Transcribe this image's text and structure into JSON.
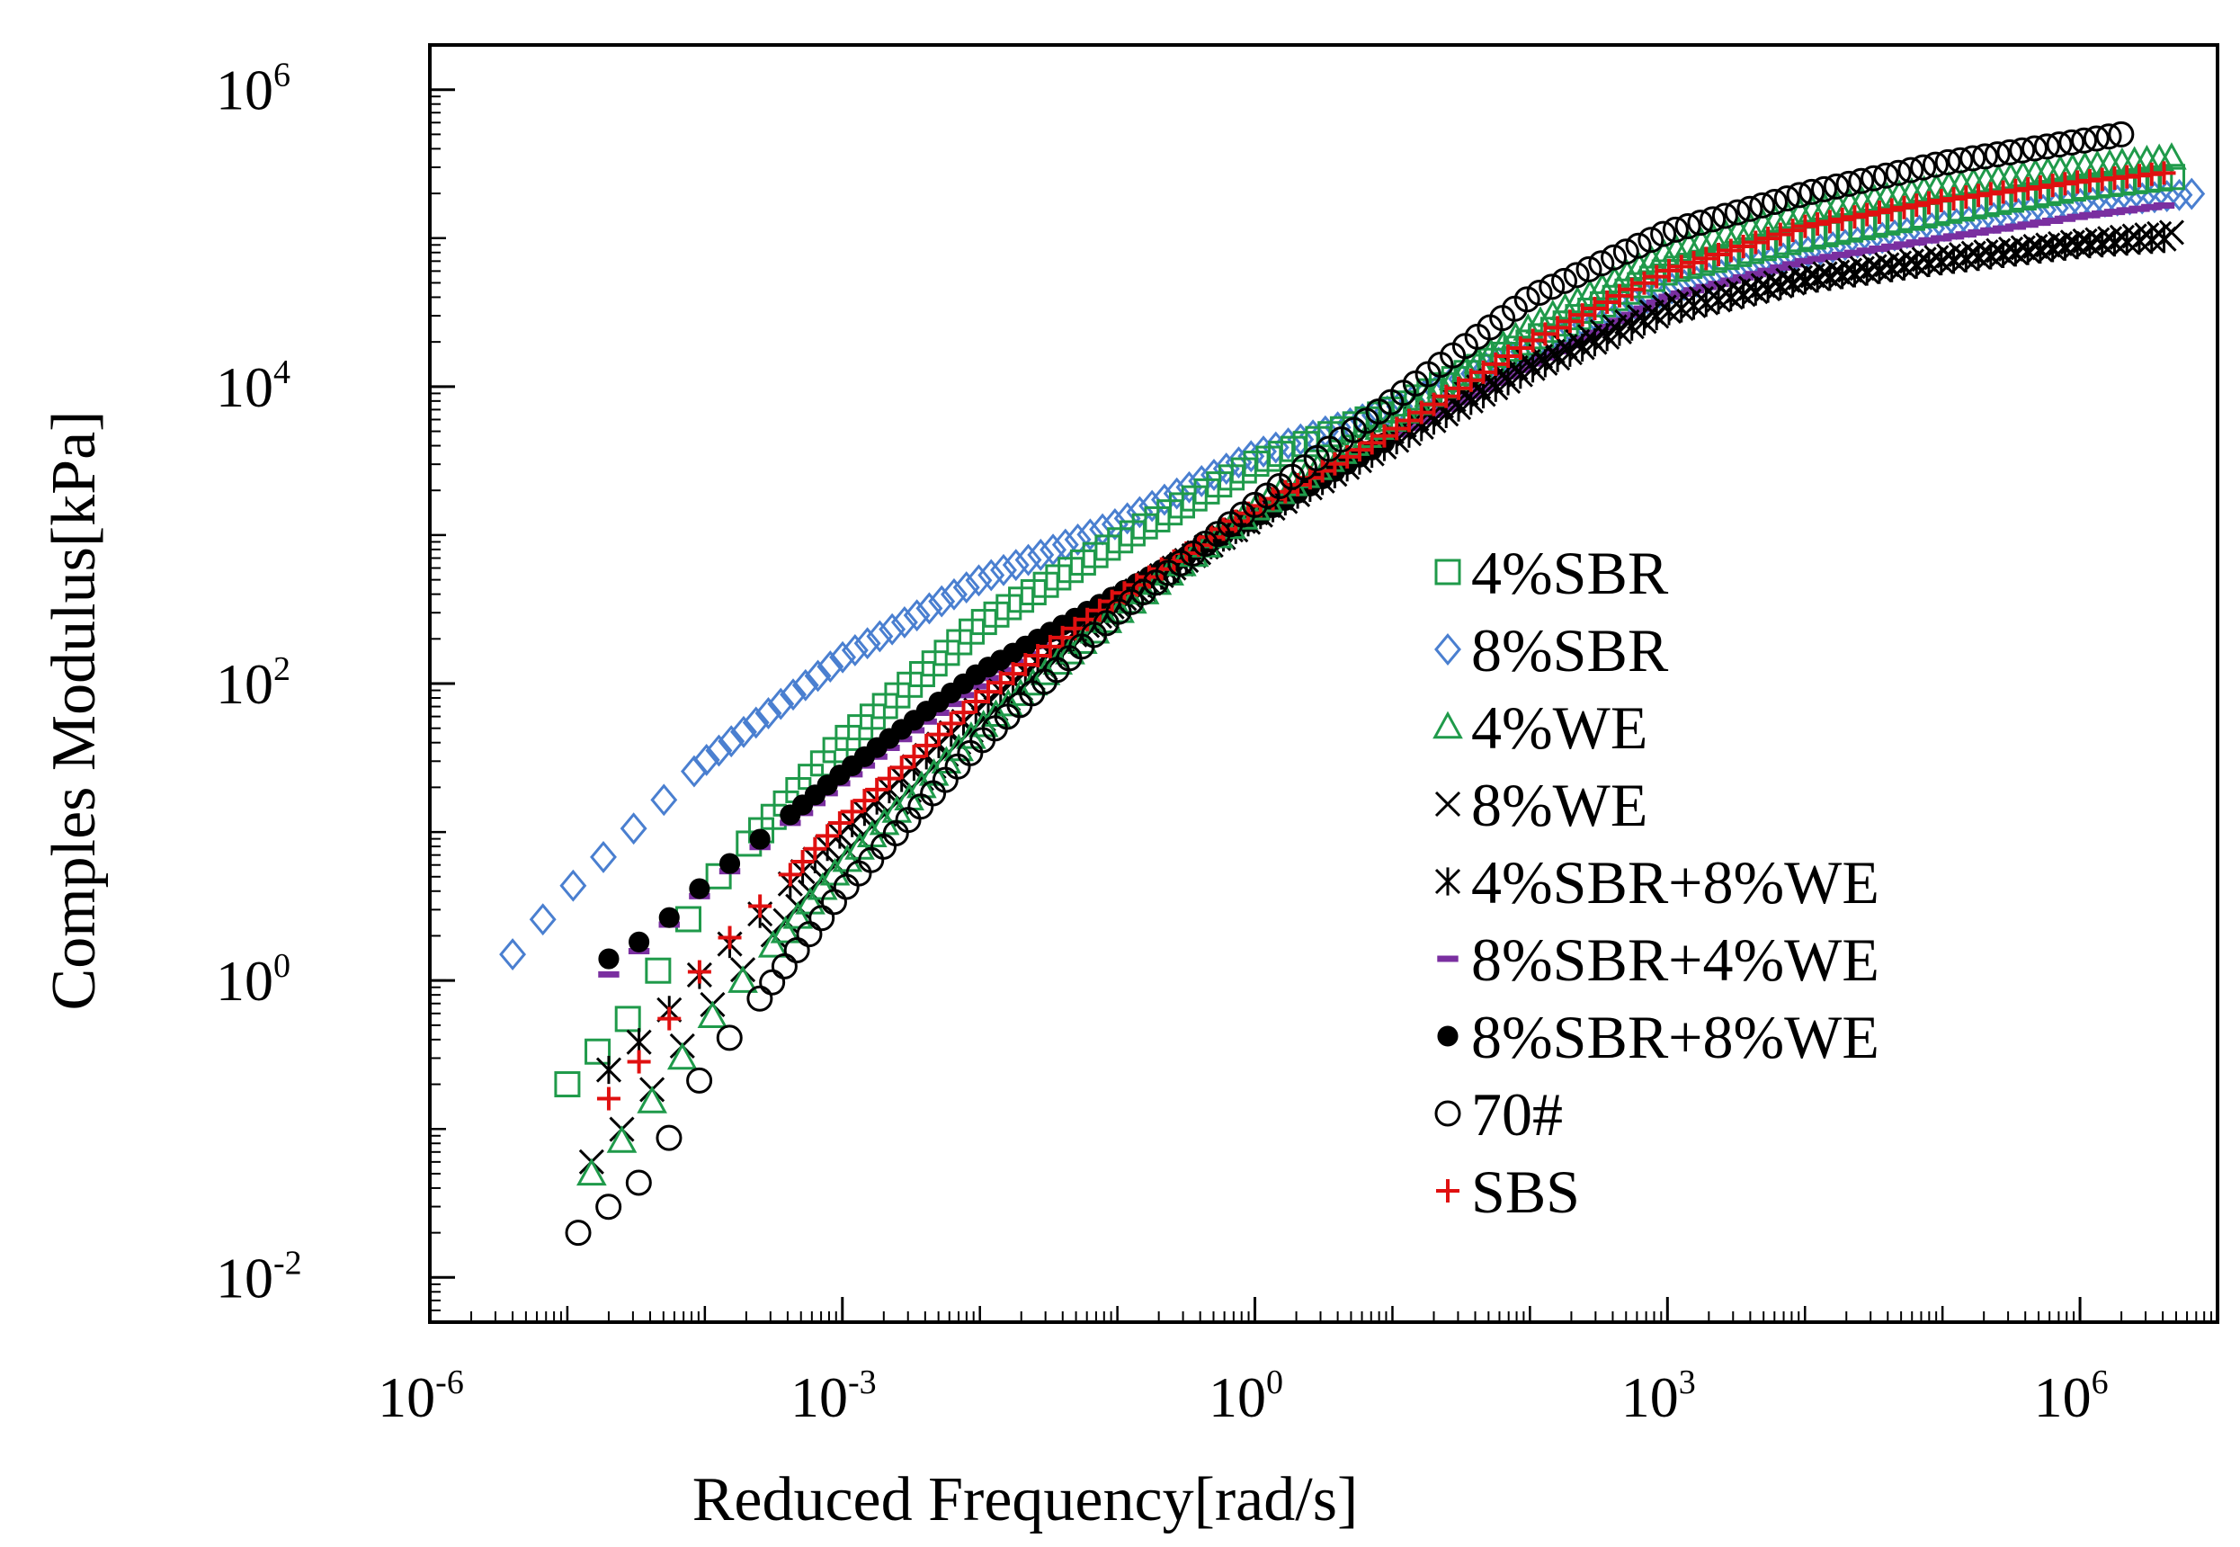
{
  "chart_data": {
    "type": "scatter",
    "title": "",
    "xlabel": "Reduced Frequency[rad/s]",
    "ylabel": "Comples  Modulus[kPa]",
    "xscale": "log",
    "yscale": "log",
    "xlim": [
      1e-06,
      10000000.0
    ],
    "ylim": [
      0.005,
      2000000
    ],
    "grid": false,
    "legend_position": "center-right",
    "xticks": [
      {
        "base": "10",
        "exp": "-6",
        "value": 1e-06
      },
      {
        "base": "10",
        "exp": "-3",
        "value": 0.001
      },
      {
        "base": "10",
        "exp": "0",
        "value": 1
      },
      {
        "base": "10",
        "exp": "3",
        "value": 1000
      },
      {
        "base": "10",
        "exp": "6",
        "value": 1000000
      }
    ],
    "yticks": [
      {
        "base": "10",
        "exp": "-2",
        "value": 0.01
      },
      {
        "base": "10",
        "exp": "0",
        "value": 1
      },
      {
        "base": "10",
        "exp": "2",
        "value": 100
      },
      {
        "base": "10",
        "exp": "4",
        "value": 10000
      },
      {
        "base": "10",
        "exp": "6",
        "value": 1000000
      }
    ],
    "series": [
      {
        "name": "4%SBR",
        "marker": "square",
        "color": "#1f9a4a",
        "filled": false,
        "x": [
          1e-05,
          3e-05,
          0.0001,
          0.001,
          0.01,
          0.1,
          1,
          10,
          100,
          1000,
          10000,
          100000,
          1000000,
          5000000
        ],
        "y": [
          0.2,
          0.6,
          4,
          40,
          250,
          900,
          3000,
          7000,
          20000,
          60000,
          100000,
          150000,
          220000,
          260000
        ]
      },
      {
        "name": "8%SBR",
        "marker": "diamond",
        "color": "#4a7fd0",
        "filled": false,
        "x": [
          4e-06,
          1e-05,
          0.0001,
          0.001,
          0.01,
          0.1,
          1,
          10,
          100,
          1000,
          10000,
          100000,
          1000000,
          7000000
        ],
        "y": [
          1.5,
          4,
          30,
          150,
          500,
          1200,
          3500,
          7000,
          18000,
          45000,
          80000,
          120000,
          170000,
          200000
        ]
      },
      {
        "name": "4%WE",
        "marker": "triangle",
        "color": "#1f9a4a",
        "filled": false,
        "x": [
          1.5e-05,
          3e-05,
          0.0001,
          0.001,
          0.01,
          0.1,
          1,
          10,
          100,
          1000,
          10000,
          100000,
          1000000,
          5000000
        ],
        "y": [
          0.05,
          0.1,
          0.5,
          6,
          50,
          300,
          1500,
          6000,
          25000,
          80000,
          150000,
          220000,
          300000,
          350000
        ]
      },
      {
        "name": "8%WE",
        "marker": "x",
        "color": "#000000",
        "filled": false,
        "x": [
          1.5e-05,
          3e-05,
          0.0001,
          0.001,
          0.01,
          0.1,
          1,
          10,
          100,
          1000,
          10000,
          100000,
          1000000,
          5000000
        ],
        "y": [
          0.06,
          0.12,
          0.6,
          7,
          55,
          320,
          1400,
          5000,
          15000,
          35000,
          55000,
          75000,
          95000,
          110000
        ]
      },
      {
        "name": "4%SBR+8%WE",
        "marker": "asterisk",
        "color": "#000000",
        "filled": false,
        "x": [
          2e-05,
          4e-05,
          0.0001,
          0.001,
          0.01,
          0.1,
          1,
          10,
          100,
          1000,
          10000,
          100000,
          1000000,
          5000000
        ],
        "y": [
          0.25,
          0.45,
          1.2,
          10,
          70,
          350,
          1300,
          4200,
          13000,
          32000,
          52000,
          70000,
          90000,
          100000
        ]
      },
      {
        "name": "8%SBR+4%WE",
        "marker": "dash",
        "color": "#7a2fa0",
        "filled": false,
        "x": [
          2e-05,
          4e-05,
          0.0001,
          0.001,
          0.01,
          0.1,
          1,
          10,
          100,
          1000,
          10000,
          100000,
          1000000,
          5000000
        ],
        "y": [
          1.1,
          1.8,
          4,
          22,
          100,
          400,
          1400,
          4600,
          14000,
          40000,
          70000,
          100000,
          140000,
          170000
        ]
      },
      {
        "name": "8%SBR+8%WE",
        "marker": "dot",
        "color": "#000000",
        "filled": true,
        "x": [
          2e-05,
          4e-05,
          0.0001,
          0.001,
          0.01,
          0.1,
          1,
          10
        ],
        "y": [
          1.4,
          2,
          4.5,
          25,
          120,
          400,
          1300,
          4500
        ]
      },
      {
        "name": "70#",
        "marker": "circle",
        "color": "#000000",
        "filled": false,
        "x": [
          1.2e-05,
          2e-05,
          4e-05,
          0.0001,
          0.001,
          0.01,
          0.1,
          1,
          10,
          100,
          1000,
          10000,
          100000,
          1000000,
          2000000
        ],
        "y": [
          0.02,
          0.03,
          0.05,
          0.25,
          4,
          40,
          300,
          1600,
          8000,
          40000,
          110000,
          200000,
          320000,
          450000,
          500000
        ]
      },
      {
        "name": "SBS",
        "marker": "plus",
        "color": "#e01010",
        "filled": false,
        "x": [
          2e-05,
          4e-05,
          0.0001,
          0.001,
          0.01,
          0.1,
          1,
          10,
          100,
          1000,
          10000,
          100000,
          1000000,
          5000000
        ],
        "y": [
          0.16,
          0.35,
          1.3,
          12,
          80,
          380,
          1500,
          5000,
          20000,
          60000,
          120000,
          180000,
          240000,
          280000
        ]
      }
    ]
  }
}
